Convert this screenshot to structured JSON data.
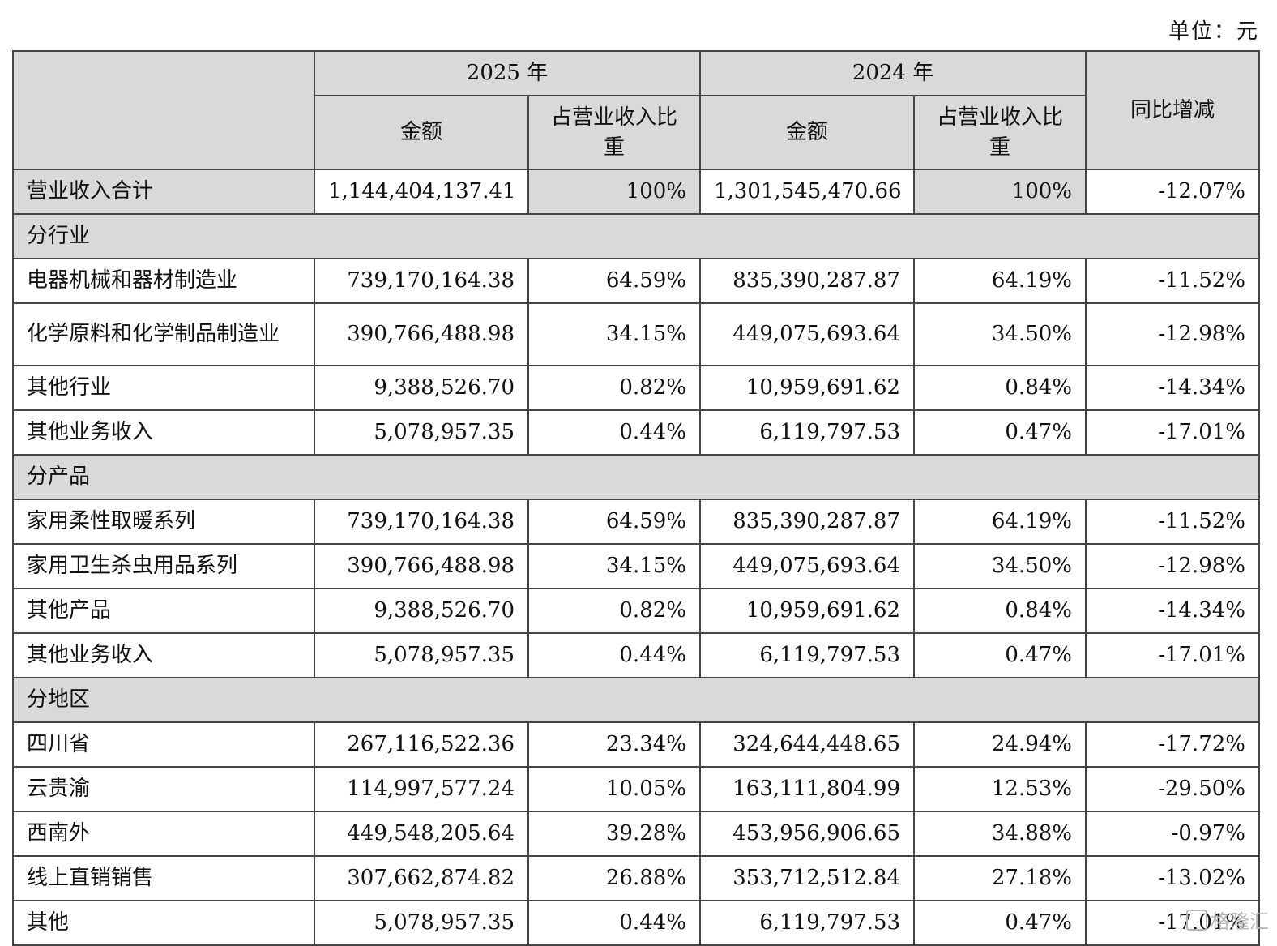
{
  "unit_label": "单位：元",
  "header": {
    "year_current": "2025 年",
    "year_previous": "2024 年",
    "col_amount": "金额",
    "col_share": "占营业收入比重",
    "col_yoy": "同比增减"
  },
  "total": {
    "label": "营业收入合计",
    "amount_2025": "1,144,404,137.41",
    "share_2025": "100%",
    "amount_2024": "1,301,545,470.66",
    "share_2024": "100%",
    "yoy": "-12.07%"
  },
  "sections": [
    {
      "title": "分行业",
      "rows": [
        {
          "label": "电器机械和器材制造业",
          "amount_2025": "739,170,164.38",
          "share_2025": "64.59%",
          "amount_2024": "835,390,287.87",
          "share_2024": "64.19%",
          "yoy": "-11.52%"
        },
        {
          "label": "化学原料和化学制品制造业",
          "amount_2025": "390,766,488.98",
          "share_2025": "34.15%",
          "amount_2024": "449,075,693.64",
          "share_2024": "34.50%",
          "yoy": "-12.98%"
        },
        {
          "label": "其他行业",
          "amount_2025": "9,388,526.70",
          "share_2025": "0.82%",
          "amount_2024": "10,959,691.62",
          "share_2024": "0.84%",
          "yoy": "-14.34%"
        },
        {
          "label": "其他业务收入",
          "amount_2025": "5,078,957.35",
          "share_2025": "0.44%",
          "amount_2024": "6,119,797.53",
          "share_2024": "0.47%",
          "yoy": "-17.01%"
        }
      ]
    },
    {
      "title": "分产品",
      "rows": [
        {
          "label": "家用柔性取暖系列",
          "amount_2025": "739,170,164.38",
          "share_2025": "64.59%",
          "amount_2024": "835,390,287.87",
          "share_2024": "64.19%",
          "yoy": "-11.52%"
        },
        {
          "label": "家用卫生杀虫用品系列",
          "amount_2025": "390,766,488.98",
          "share_2025": "34.15%",
          "amount_2024": "449,075,693.64",
          "share_2024": "34.50%",
          "yoy": "-12.98%"
        },
        {
          "label": "其他产品",
          "amount_2025": "9,388,526.70",
          "share_2025": "0.82%",
          "amount_2024": "10,959,691.62",
          "share_2024": "0.84%",
          "yoy": "-14.34%"
        },
        {
          "label": "其他业务收入",
          "amount_2025": "5,078,957.35",
          "share_2025": "0.44%",
          "amount_2024": "6,119,797.53",
          "share_2024": "0.47%",
          "yoy": "-17.01%"
        }
      ]
    },
    {
      "title": "分地区",
      "rows": [
        {
          "label": "四川省",
          "amount_2025": "267,116,522.36",
          "share_2025": "23.34%",
          "amount_2024": "324,644,448.65",
          "share_2024": "24.94%",
          "yoy": "-17.72%"
        },
        {
          "label": "云贵渝",
          "amount_2025": "114,997,577.24",
          "share_2025": "10.05%",
          "amount_2024": "163,111,804.99",
          "share_2024": "12.53%",
          "yoy": "-29.50%"
        },
        {
          "label": "西南外",
          "amount_2025": "449,548,205.64",
          "share_2025": "39.28%",
          "amount_2024": "453,956,906.65",
          "share_2024": "34.88%",
          "yoy": "-0.97%"
        },
        {
          "label": "线上直销销售",
          "amount_2025": "307,662,874.82",
          "share_2025": "26.88%",
          "amount_2024": "353,712,512.84",
          "share_2024": "27.18%",
          "yoy": "-13.02%"
        },
        {
          "label": "其他",
          "amount_2025": "5,078,957.35",
          "share_2025": "0.44%",
          "amount_2024": "6,119,797.53",
          "share_2024": "0.47%",
          "yoy": "-17.01%"
        }
      ]
    }
  ],
  "watermark": "格隆汇"
}
